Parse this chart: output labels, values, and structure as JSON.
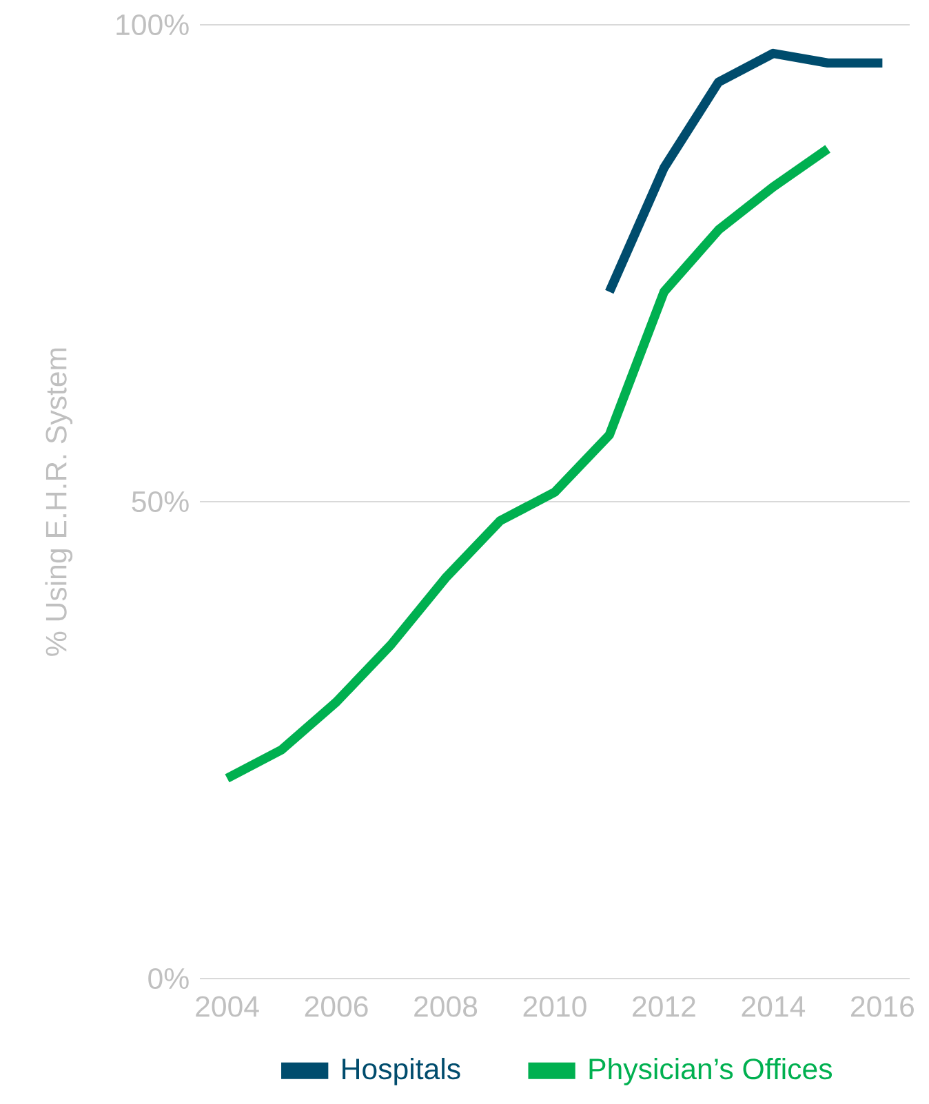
{
  "chart_data": {
    "type": "line",
    "ylabel": "% Using E.H.R. System",
    "x": [
      2004,
      2005,
      2006,
      2007,
      2008,
      2009,
      2010,
      2011,
      2012,
      2013,
      2014,
      2015,
      2016
    ],
    "series": [
      {
        "name": "Hospitals",
        "color": "#004c6d",
        "values": [
          null,
          null,
          null,
          null,
          null,
          null,
          null,
          72,
          85,
          94,
          97,
          96,
          96
        ]
      },
      {
        "name": "Physician’s Offices",
        "color": "#00b050",
        "values": [
          21,
          24,
          29,
          35,
          42,
          48,
          51,
          57,
          72,
          78.5,
          83,
          87,
          null
        ]
      }
    ],
    "xlim": [
      2003.5,
      2016.5
    ],
    "ylim": [
      0,
      100
    ],
    "xticks": [
      2004,
      2006,
      2008,
      2010,
      2012,
      2014,
      2016
    ],
    "yticks": [
      {
        "value": 0,
        "label": "0%"
      },
      {
        "value": 50,
        "label": "50%"
      },
      {
        "value": 100,
        "label": "100%"
      }
    ],
    "grid": "y",
    "legend": "bottom"
  }
}
